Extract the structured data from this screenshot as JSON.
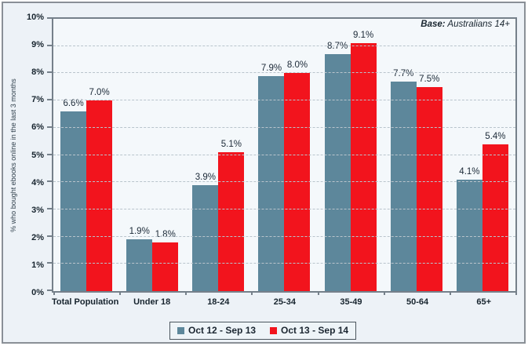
{
  "chart_data": {
    "type": "bar",
    "title": "",
    "base_note": {
      "label": "Base:",
      "value": "Australians 14+"
    },
    "ylabel": "% who bought ebooks online in the last 3 months",
    "ylim": [
      0,
      10
    ],
    "ytick_step": 1,
    "ytick_labels": [
      "0%",
      "1%",
      "2%",
      "3%",
      "4%",
      "5%",
      "6%",
      "7%",
      "8%",
      "9%",
      "10%"
    ],
    "grid": "horizontal-dashed",
    "legend_position": "bottom-center",
    "value_label_suffix": "%",
    "categories": [
      "Total Population",
      "Under 18",
      "18-24",
      "25-34",
      "35-49",
      "50-64",
      "65+"
    ],
    "series": [
      {
        "name": "Oct 12 - Sep 13",
        "color": "#5d879b",
        "values": [
          6.6,
          1.9,
          3.9,
          7.9,
          8.7,
          7.7,
          4.1
        ]
      },
      {
        "name": "Oct 13 - Sep 14",
        "color": "#f2141d",
        "values": [
          7.0,
          1.8,
          5.1,
          8.0,
          9.1,
          7.5,
          5.4
        ]
      }
    ]
  },
  "colors": {
    "background": "#edf2f7",
    "plot_background": "#f4f8fb",
    "gridline": "#b9c4cc",
    "axis": "#75808a",
    "text": "#17242e",
    "frame_border": "#8a9097",
    "series1": "#5d879b",
    "series2": "#f2141d"
  }
}
